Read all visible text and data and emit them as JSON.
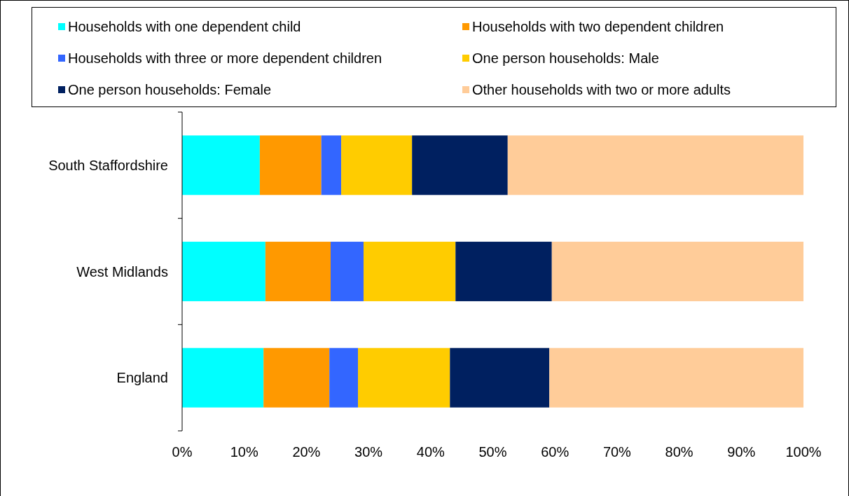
{
  "chart_data": {
    "type": "bar",
    "orientation": "horizontal",
    "stacked": true,
    "legend": "top",
    "categories": [
      "South Staffordshire",
      "West Midlands",
      "England"
    ],
    "xlim": [
      0,
      100
    ],
    "xticks": [
      {
        "value": 0,
        "label": "0%"
      },
      {
        "value": 10,
        "label": "10%"
      },
      {
        "value": 20,
        "label": "20%"
      },
      {
        "value": 30,
        "label": "30%"
      },
      {
        "value": 40,
        "label": "40%"
      },
      {
        "value": 50,
        "label": "50%"
      },
      {
        "value": 60,
        "label": "60%"
      },
      {
        "value": 70,
        "label": "70%"
      },
      {
        "value": 80,
        "label": "80%"
      },
      {
        "value": 90,
        "label": "90%"
      },
      {
        "value": 100,
        "label": "100%"
      }
    ],
    "series": [
      {
        "name": "Households with one dependent child",
        "color": "#00ffff",
        "values": [
          12.5,
          13.4,
          13.1
        ]
      },
      {
        "name": "Households with two dependent children",
        "color": "#ff9900",
        "values": [
          9.9,
          10.5,
          10.6
        ]
      },
      {
        "name": "Households with three or more dependent children",
        "color": "#3366ff",
        "values": [
          3.2,
          5.3,
          4.6
        ]
      },
      {
        "name": "One person households: Male",
        "color": "#ffcc00",
        "values": [
          11.4,
          14.8,
          14.8
        ]
      },
      {
        "name": "One person households: Female",
        "color": "#002060",
        "values": [
          15.4,
          15.5,
          16.0
        ]
      },
      {
        "name": "Other households with two or more adults",
        "color": "#ffcc99",
        "values": [
          47.6,
          40.5,
          40.9
        ]
      }
    ]
  }
}
